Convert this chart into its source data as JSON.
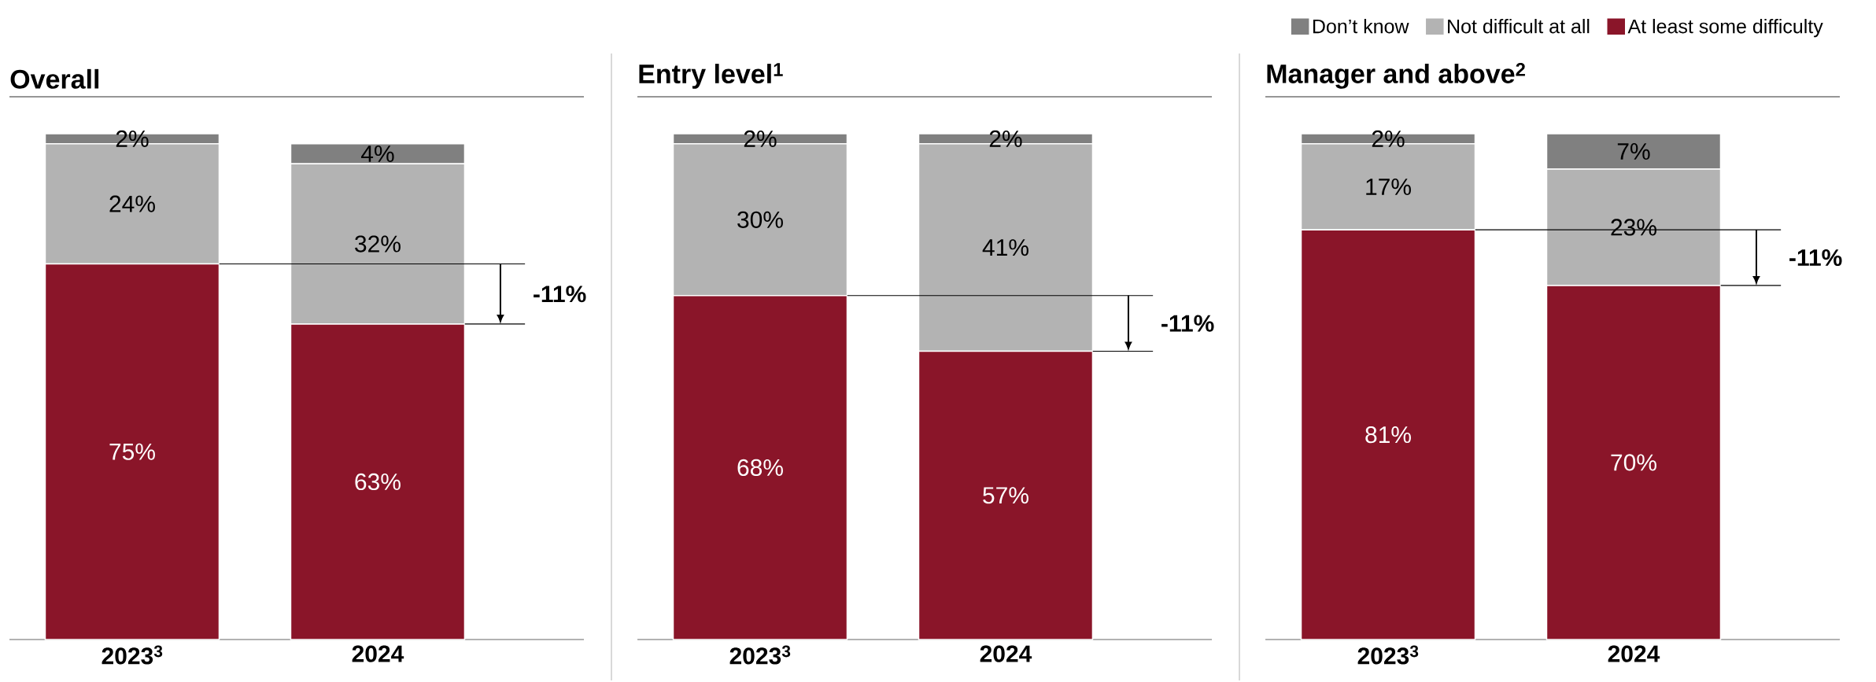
{
  "chart_data": [
    {
      "type": "bar",
      "stacked": true,
      "title": "Overall",
      "categories": [
        "2023$^{3}$",
        "2024"
      ],
      "series": [
        {
          "color": "#8a1529",
          "values": [
            75,
            63
          ],
          "value_labels": [
            "75%",
            "63%"
          ]
        },
        {
          "color": "#b3b3b3",
          "values": [
            24,
            32
          ],
          "value_labels": [
            "24%",
            "32%"
          ]
        },
        {
          "color": "#808080",
          "values": [
            2,
            4
          ],
          "value_labels": [
            "2%",
            "4%"
          ]
        }
      ],
      "annotations": [
        "-11%"
      ]
    },
    {
      "type": "bar",
      "stacked": true,
      "title": "Entry level$^{1}$",
      "categories": [
        "2023$^{3}$",
        "2024"
      ],
      "series": [
        {
          "color": "#8a1529",
          "values": [
            68,
            57
          ],
          "value_labels": [
            "68%",
            "57%"
          ]
        },
        {
          "color": "#b3b3b3",
          "values": [
            30,
            41
          ],
          "value_labels": [
            "30%",
            "41%"
          ]
        },
        {
          "color": "#808080",
          "values": [
            2,
            2
          ],
          "value_labels": [
            "2%",
            "2%"
          ]
        }
      ],
      "annotations": [
        "-11%"
      ]
    },
    {
      "type": "bar",
      "stacked": true,
      "title": "Manager and above$^{2}$",
      "categories": [
        "2023$^{3}$",
        "2024"
      ],
      "legend": "top right",
      "series": [
        {
          "name": "At least some difficulty",
          "color": "#8a1529",
          "values": [
            81,
            70
          ],
          "value_labels": [
            "81%",
            "70%"
          ]
        },
        {
          "name": "Not difficult at all",
          "color": "#b3b3b3",
          "values": [
            17,
            23
          ],
          "value_labels": [
            "17%",
            "23%"
          ]
        },
        {
          "name": "Don’t know",
          "color": "#808080",
          "values": [
            2,
            7
          ],
          "value_labels": [
            "2%",
            "7%"
          ]
        }
      ],
      "annotations": [
        "-11%"
      ]
    }
  ]
}
